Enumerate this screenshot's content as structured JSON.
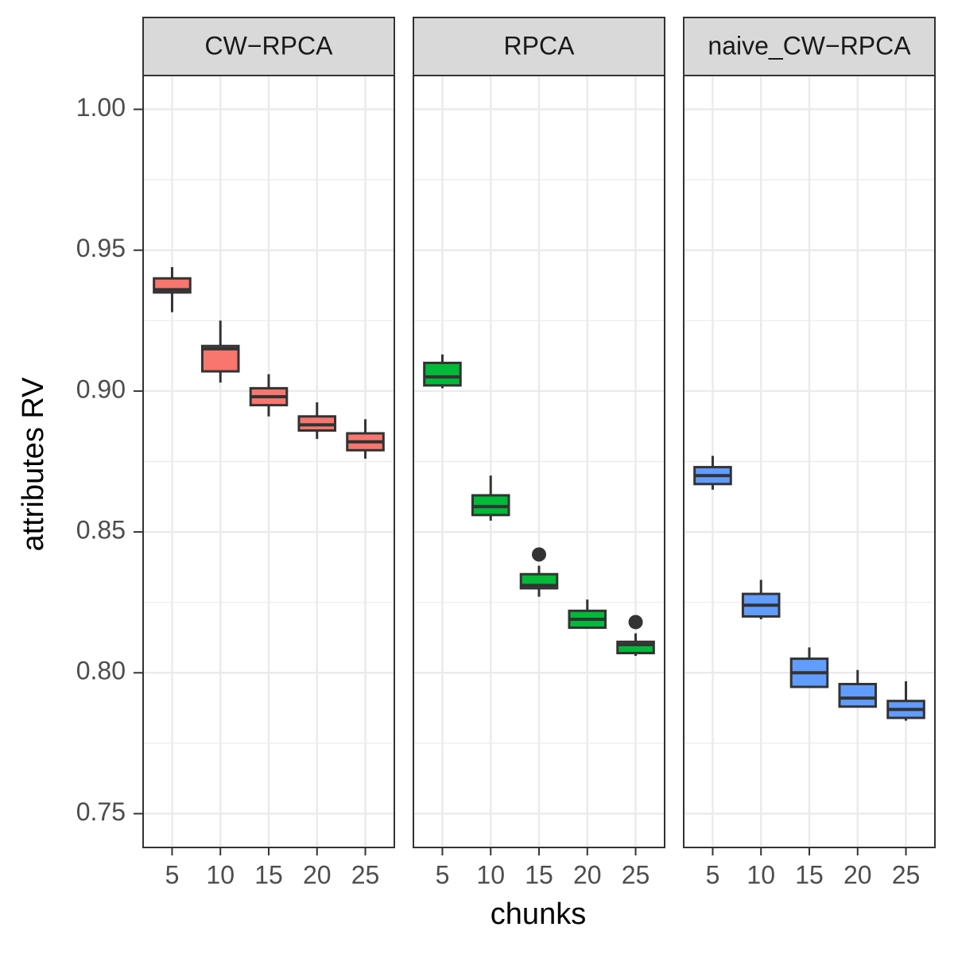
{
  "chart_data": {
    "type": "box",
    "xlabel": "chunks",
    "ylabel": "attributes RV",
    "ylim": [
      0.738,
      1.012
    ],
    "yticks": [
      {
        "value": 0.75,
        "label": "0.75"
      },
      {
        "value": 0.8,
        "label": "0.80"
      },
      {
        "value": 0.85,
        "label": "0.85"
      },
      {
        "value": 0.9,
        "label": "0.90"
      },
      {
        "value": 0.95,
        "label": "0.95"
      },
      {
        "value": 1,
        "label": "1.00"
      }
    ],
    "grid": true,
    "facets": [
      {
        "title": "CW−RPCA",
        "color": "#F8766D",
        "categories": [
          5,
          10,
          15,
          20,
          25
        ],
        "boxes": [
          {
            "min": 0.928,
            "q1": 0.935,
            "median": 0.936,
            "q3": 0.94,
            "max": 0.944
          },
          {
            "min": 0.903,
            "q1": 0.907,
            "median": 0.915,
            "q3": 0.916,
            "max": 0.925
          },
          {
            "min": 0.891,
            "q1": 0.895,
            "median": 0.898,
            "q3": 0.901,
            "max": 0.906
          },
          {
            "min": 0.883,
            "q1": 0.886,
            "median": 0.888,
            "q3": 0.891,
            "max": 0.896
          },
          {
            "min": 0.876,
            "q1": 0.879,
            "median": 0.882,
            "q3": 0.885,
            "max": 0.89
          }
        ]
      },
      {
        "title": "RPCA",
        "color": "#00BA38",
        "categories": [
          5,
          10,
          15,
          20,
          25
        ],
        "boxes": [
          {
            "min": 0.901,
            "q1": 0.902,
            "median": 0.905,
            "q3": 0.91,
            "max": 0.913
          },
          {
            "min": 0.854,
            "q1": 0.856,
            "median": 0.859,
            "q3": 0.863,
            "max": 0.87
          },
          {
            "min": 0.827,
            "q1": 0.83,
            "median": 0.831,
            "q3": 0.835,
            "max": 0.838,
            "outliers": [
              0.842
            ]
          },
          {
            "min": 0.816,
            "q1": 0.816,
            "median": 0.819,
            "q3": 0.822,
            "max": 0.826
          },
          {
            "min": 0.806,
            "q1": 0.807,
            "median": 0.81,
            "q3": 0.811,
            "max": 0.814,
            "outliers": [
              0.818
            ]
          }
        ]
      },
      {
        "title": "naive_CW−RPCA",
        "color": "#619CFF",
        "categories": [
          5,
          10,
          15,
          20,
          25
        ],
        "boxes": [
          {
            "min": 0.865,
            "q1": 0.867,
            "median": 0.87,
            "q3": 0.873,
            "max": 0.877
          },
          {
            "min": 0.819,
            "q1": 0.82,
            "median": 0.824,
            "q3": 0.828,
            "max": 0.833
          },
          {
            "min": 0.795,
            "q1": 0.795,
            "median": 0.8,
            "q3": 0.805,
            "max": 0.809
          },
          {
            "min": 0.788,
            "q1": 0.788,
            "median": 0.791,
            "q3": 0.796,
            "max": 0.801
          },
          {
            "min": 0.783,
            "q1": 0.784,
            "median": 0.787,
            "q3": 0.79,
            "max": 0.797
          }
        ]
      }
    ]
  }
}
